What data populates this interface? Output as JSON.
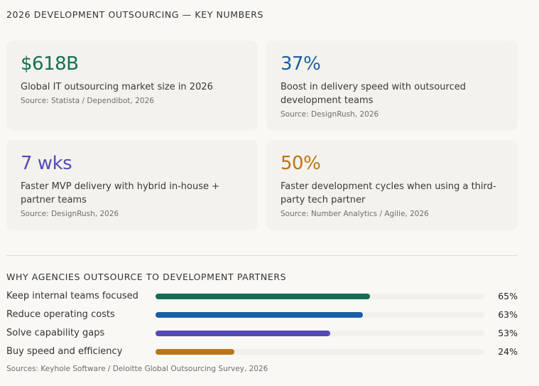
{
  "header": {
    "title": "2026 DEVELOPMENT OUTSOURCING — KEY NUMBERS"
  },
  "cards": [
    {
      "value": "$618B",
      "color": "#147055",
      "description": "Global IT outsourcing market size in 2026",
      "source": "Source: Statista / Dependibot, 2026"
    },
    {
      "value": "37%",
      "color": "#1c5ea6",
      "description": "Boost in delivery speed with outsourced development teams",
      "source": "Source: DesignRush, 2026"
    },
    {
      "value": "7 wks",
      "color": "#544bb8",
      "description": "Faster MVP delivery with hybrid in-house + partner teams",
      "source": "Source: DesignRush, 2026"
    },
    {
      "value": "50%",
      "color": "#bb7419",
      "description": "Faster development cycles when using a third-party tech partner",
      "source": "Source: Number Analytics / Agilie, 2026"
    }
  ],
  "reasons": {
    "title": "WHY AGENCIES OUTSOURCE TO DEVELOPMENT PARTNERS",
    "items": [
      {
        "label": "Keep internal teams focused",
        "percent": 65,
        "percent_label": "65%",
        "color": "#136f55"
      },
      {
        "label": "Reduce operating costs",
        "percent": 63,
        "percent_label": "63%",
        "color": "#1b5ea5"
      },
      {
        "label": "Solve capability gaps",
        "percent": 53,
        "percent_label": "53%",
        "color": "#544bb8"
      },
      {
        "label": "Buy speed and efficiency",
        "percent": 24,
        "percent_label": "24%",
        "color": "#bb7419"
      }
    ],
    "source": "Sources: Keyhole Software / Deloitte Global Outsourcing Survey, 2026"
  }
}
